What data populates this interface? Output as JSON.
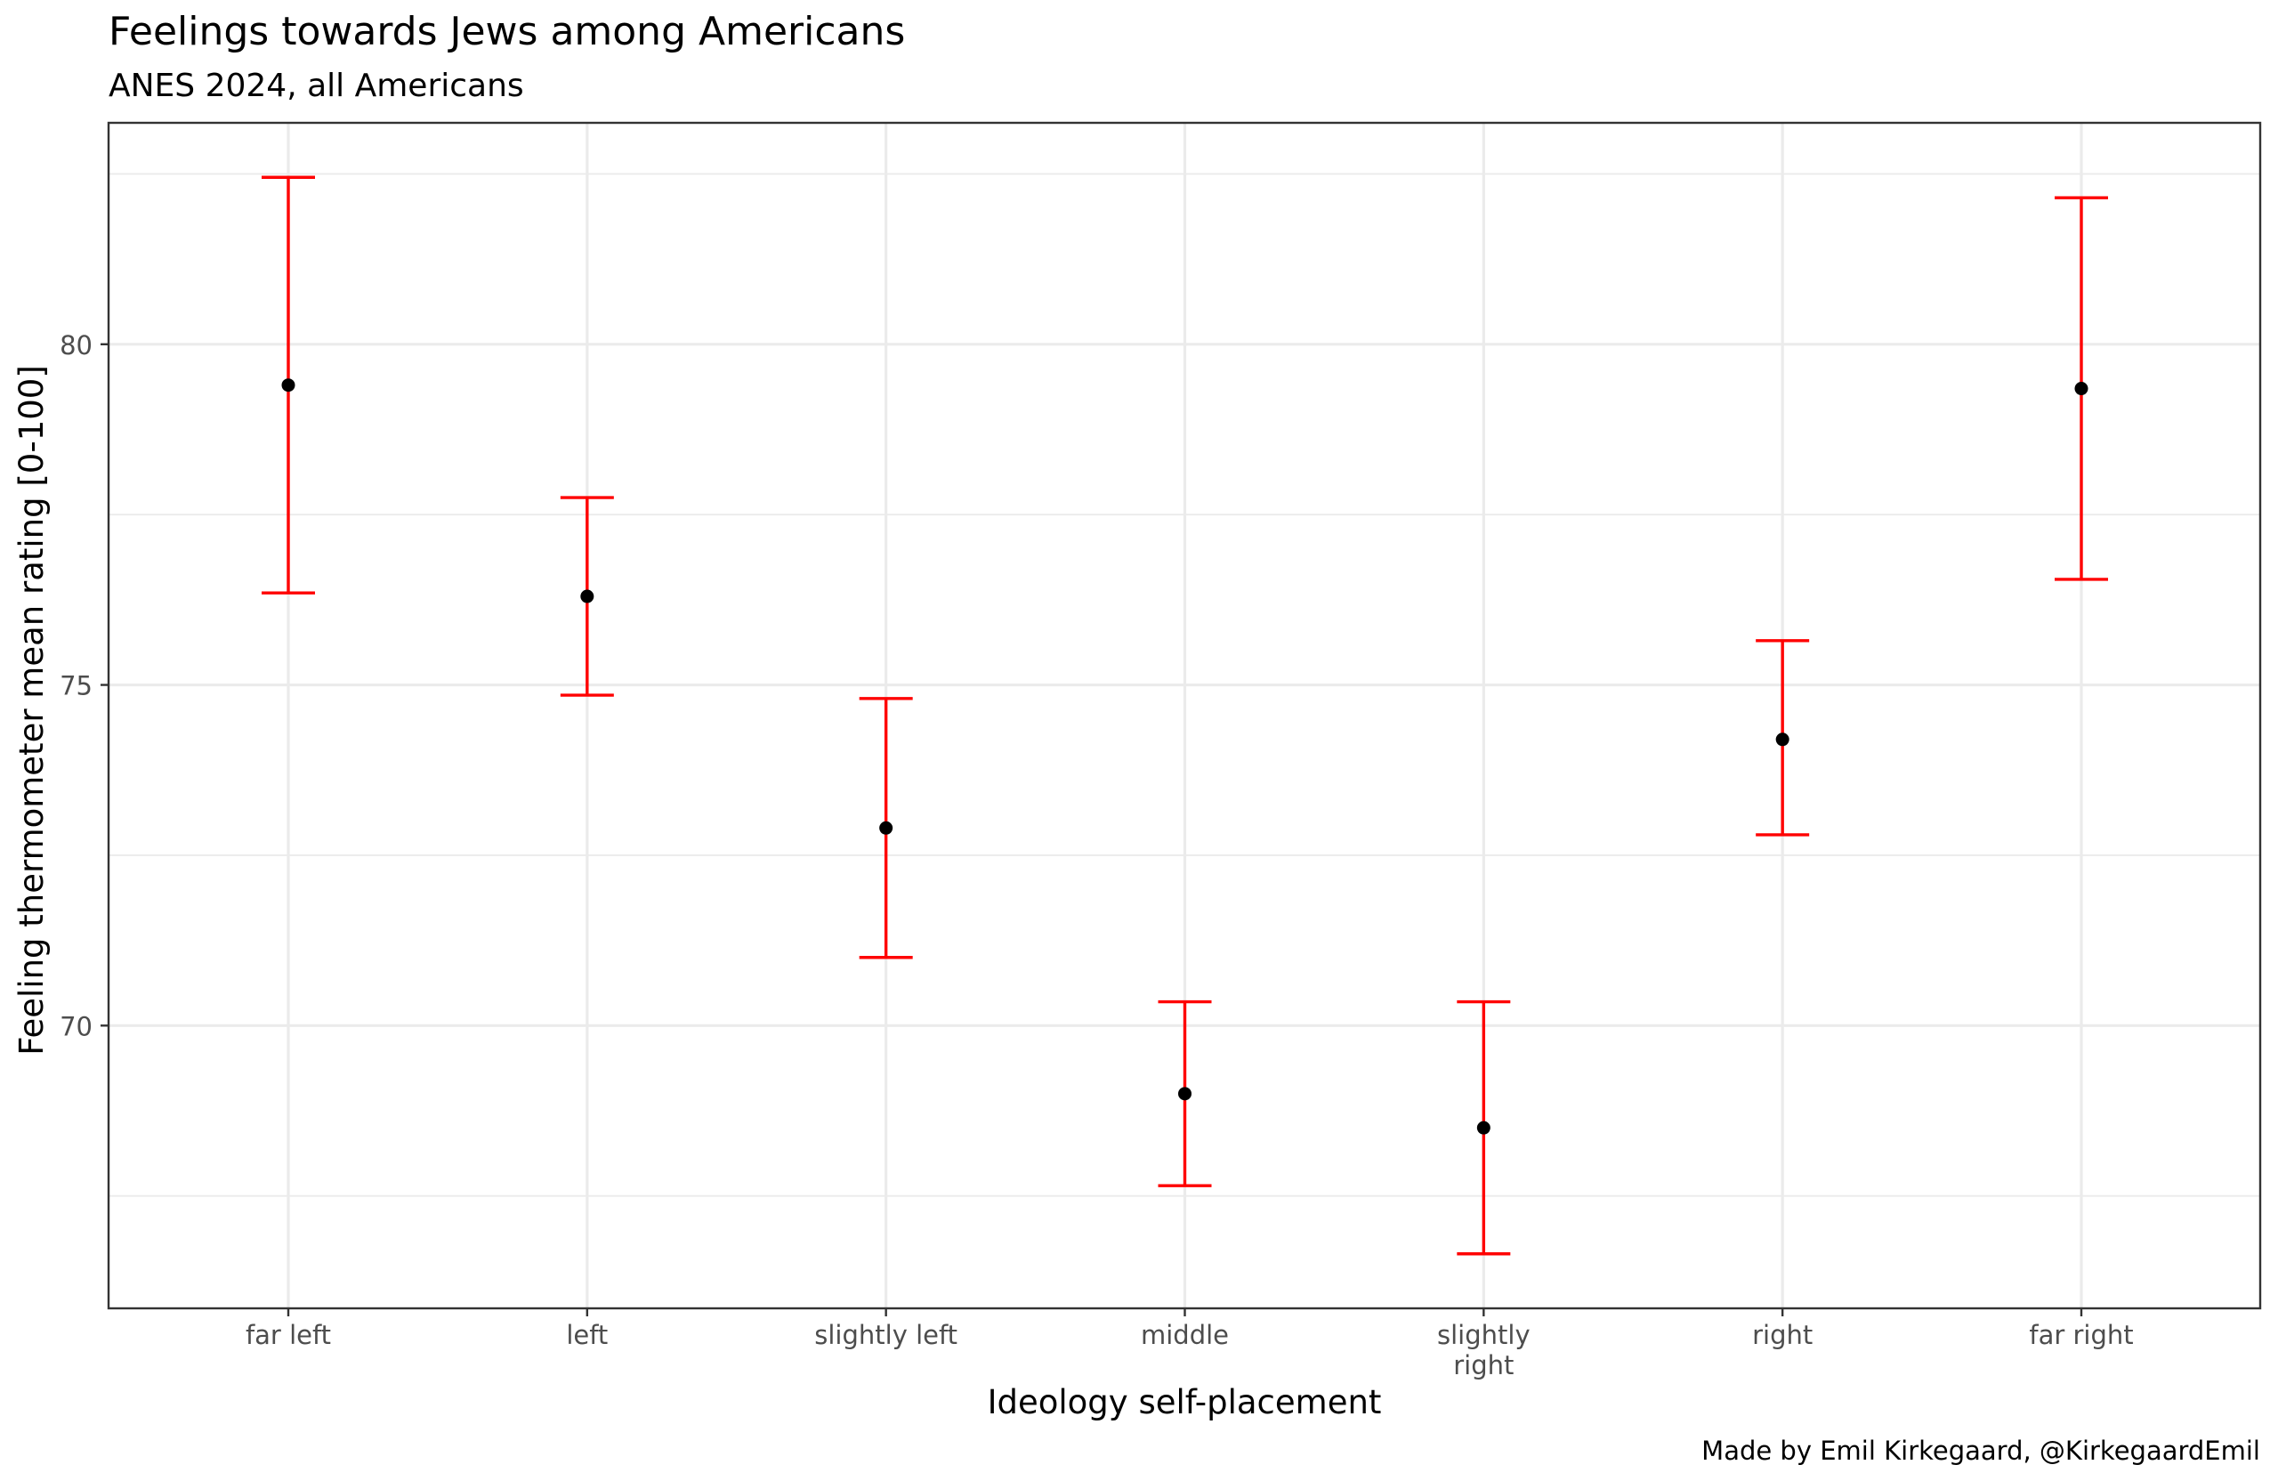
{
  "chart_data": {
    "type": "scatter",
    "title": "Feelings towards Jews among Americans",
    "subtitle": "ANES 2024, all Americans",
    "xlabel": "Ideology self-placement",
    "ylabel": "Feeling thermometer mean rating [0-100]",
    "caption": "Made by Emil Kirkegaard, @KirkegaardEmil",
    "categories": [
      [
        "far left"
      ],
      [
        "left"
      ],
      [
        "slightly left"
      ],
      [
        "middle"
      ],
      [
        "slightly",
        "right"
      ],
      [
        "right"
      ],
      [
        "far right"
      ]
    ],
    "values": [
      79.4,
      76.3,
      72.9,
      69.0,
      68.5,
      74.2,
      79.35
    ],
    "ci_lower": [
      76.35,
      74.85,
      71.0,
      67.65,
      66.65,
      72.8,
      76.55
    ],
    "ci_upper": [
      82.45,
      77.75,
      74.8,
      70.35,
      70.35,
      75.65,
      82.15
    ],
    "yticks": [
      70,
      75,
      80
    ],
    "ylim": [
      65.85,
      83.25
    ],
    "grid": true,
    "errorbar_color": "#ff0000",
    "point_color": "#000000",
    "gridline_color": "#ebebeb",
    "panel_border_color": "#333333"
  }
}
